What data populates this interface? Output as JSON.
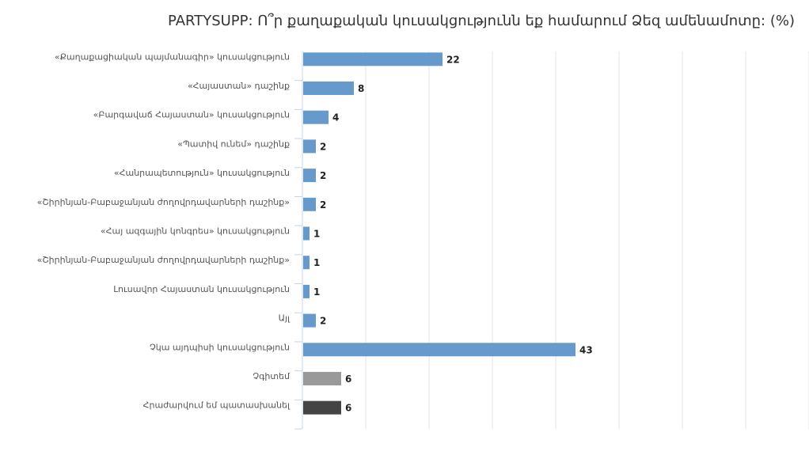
{
  "chart_data": {
    "type": "bar",
    "orientation": "horizontal",
    "title": "PARTYSUPP: Ո՞ր քաղաքական կուսակցությունն եք համարում Ձեզ ամենամոտը: (%)",
    "categories": [
      "«Քաղաքացիական պայմանագիր» կուսակցություն",
      "«Հայաստան» դաշինք",
      "«Բարգավաճ Հայաստան» կուսակցություն",
      "«Պատիվ ունեմ» դաշինք",
      "«Հանրապետություն» կուսակցություն",
      "«Շիրինյան-Բաբաջանյան ժողովրդավարների դաշինք»",
      "«Հայ ազգային կոնգրես» կուսակցություն",
      "«Շիրինյան-Բաբաջանյան ժողովրդավարների դաշինք»",
      "Լուսավոր Հայաստան կուսակցություն",
      "Այլ",
      "Չկա այդպիսի կուսակցություն",
      "Չգիտեմ",
      "Հրաժարվում եմ պատասխանել"
    ],
    "values": [
      22,
      8,
      4,
      2,
      2,
      2,
      1,
      1,
      1,
      2,
      43,
      6,
      6
    ],
    "colors": [
      "#6699cc",
      "#6699cc",
      "#6699cc",
      "#6699cc",
      "#6699cc",
      "#6699cc",
      "#6699cc",
      "#6699cc",
      "#6699cc",
      "#6699cc",
      "#6699cc",
      "#999999",
      "#444444"
    ],
    "xlim": [
      0,
      80
    ],
    "grid": true,
    "legend": "none"
  }
}
